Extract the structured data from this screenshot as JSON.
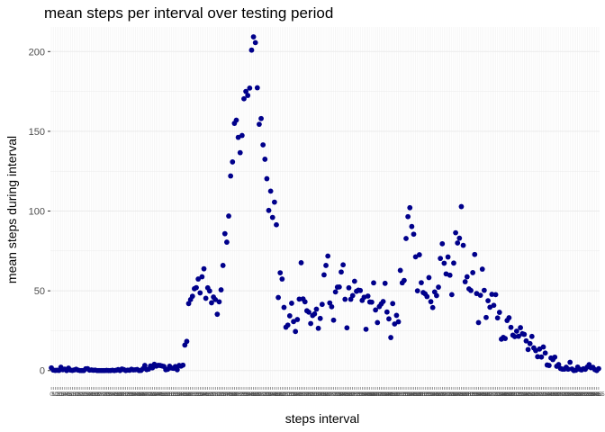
{
  "chart_data": {
    "type": "scatter",
    "title": "mean steps per interval over testing period",
    "xlabel": "steps interval",
    "ylabel": "mean steps during interval",
    "ylim": [
      0,
      215
    ],
    "y_ticks": [
      0,
      50,
      100,
      150,
      200
    ],
    "grid": true,
    "panel_background": "#ffffff",
    "grid_color": "#ebebeb",
    "point_color": "#00008b",
    "point_count": 288,
    "x": [
      0,
      5,
      10,
      15,
      20,
      25,
      30,
      35,
      40,
      45,
      50,
      55,
      100,
      105,
      110,
      115,
      120,
      125,
      130,
      135,
      140,
      145,
      150,
      155,
      200,
      205,
      210,
      215,
      220,
      225,
      230,
      235,
      240,
      245,
      250,
      255,
      300,
      305,
      310,
      315,
      320,
      325,
      330,
      335,
      340,
      345,
      350,
      355,
      400,
      405,
      410,
      415,
      420,
      425,
      430,
      435,
      440,
      445,
      450,
      455,
      500,
      505,
      510,
      515,
      520,
      525,
      530,
      535,
      540,
      545,
      550,
      555,
      600,
      605,
      610,
      615,
      620,
      625,
      630,
      635,
      640,
      645,
      650,
      655,
      700,
      705,
      710,
      715,
      720,
      725,
      730,
      735,
      740,
      745,
      750,
      755,
      800,
      805,
      810,
      815,
      820,
      825,
      830,
      835,
      840,
      845,
      850,
      855,
      900,
      905,
      910,
      915,
      920,
      925,
      930,
      935,
      940,
      945,
      950,
      955,
      1000,
      1005,
      1010,
      1015,
      1020,
      1025,
      1030,
      1035,
      1040,
      1045,
      1050,
      1055,
      1100,
      1105,
      1110,
      1115,
      1120,
      1125,
      1130,
      1135,
      1140,
      1145,
      1150,
      1155,
      1200,
      1205,
      1210,
      1215,
      1220,
      1225,
      1230,
      1235,
      1240,
      1245,
      1250,
      1255,
      1300,
      1305,
      1310,
      1315,
      1320,
      1325,
      1330,
      1335,
      1340,
      1345,
      1350,
      1355,
      1400,
      1405,
      1410,
      1415,
      1420,
      1425,
      1430,
      1435,
      1440,
      1445,
      1450,
      1455,
      1500,
      1505,
      1510,
      1515,
      1520,
      1525,
      1530,
      1535,
      1540,
      1545,
      1550,
      1555,
      1600,
      1605,
      1610,
      1615,
      1620,
      1625,
      1630,
      1635,
      1640,
      1645,
      1650,
      1655,
      1700,
      1705,
      1710,
      1715,
      1720,
      1725,
      1730,
      1735,
      1740,
      1745,
      1750,
      1755,
      1800,
      1805,
      1810,
      1815,
      1820,
      1825,
      1830,
      1835,
      1840,
      1845,
      1850,
      1855,
      1900,
      1905,
      1910,
      1915,
      1920,
      1925,
      1930,
      1935,
      1940,
      1945,
      1950,
      1955,
      2000,
      2005,
      2010,
      2015,
      2020,
      2025,
      2030,
      2035,
      2040,
      2045,
      2050,
      2055,
      2100,
      2105,
      2110,
      2115,
      2120,
      2125,
      2130,
      2135,
      2140,
      2145,
      2150,
      2155,
      2200,
      2205,
      2210,
      2215,
      2220,
      2225,
      2230,
      2235,
      2240,
      2245,
      2250,
      2255,
      2300,
      2305,
      2310,
      2315,
      2320,
      2325,
      2330,
      2335,
      2340,
      2345,
      2350,
      2355
    ],
    "y": [
      1.7,
      0.3,
      0.1,
      0.2,
      0.1,
      2.1,
      0.5,
      0.9,
      0.0,
      1.5,
      0.3,
      0.1,
      0.4,
      0.8,
      0.3,
      0.0,
      0.0,
      0.0,
      1.1,
      1.2,
      0.3,
      0.4,
      0.2,
      0.3,
      0.0,
      0.0,
      0.0,
      0.0,
      0.0,
      0.1,
      0.0,
      0.0,
      0.2,
      0.0,
      0.2,
      0.6,
      0.0,
      1.0,
      0.6,
      0.0,
      0.3,
      0.2,
      0.8,
      0.4,
      0.5,
      0.7,
      0.0,
      0.1,
      1.1,
      3.2,
      0.6,
      0.9,
      2.9,
      1.7,
      3.9,
      2.8,
      3.3,
      3.2,
      2.9,
      2.6,
      0.5,
      0.8,
      2.7,
      1.6,
      1.4,
      2.5,
      0.5,
      3.2,
      2.8,
      3.4,
      16.0,
      18.3,
      42.0,
      44.5,
      46.6,
      51.3,
      52.0,
      57.4,
      48.7,
      58.8,
      63.8,
      45.3,
      51.9,
      49.9,
      42.5,
      46.1,
      44.5,
      35.3,
      43.1,
      50.6,
      65.9,
      85.8,
      80.5,
      96.9,
      122.0,
      130.8,
      155.0,
      157.0,
      146.2,
      136.6,
      147.4,
      170.4,
      175.0,
      172.5,
      177.1,
      200.9,
      209.2,
      205.6,
      177.3,
      154.4,
      158.0,
      141.5,
      132.5,
      120.3,
      100.4,
      112.5,
      96.0,
      105.6,
      91.4,
      45.8,
      61.3,
      57.4,
      39.6,
      27.2,
      28.5,
      34.3,
      42.2,
      30.7,
      24.5,
      32.0,
      44.8,
      67.6,
      44.9,
      43.1,
      37.5,
      36.6,
      29.5,
      34.5,
      35.5,
      38.5,
      26.5,
      32.7,
      41.5,
      60.0,
      65.9,
      71.8,
      42.4,
      40.0,
      31.6,
      49.3,
      52.3,
      52.4,
      61.8,
      66.3,
      44.7,
      26.8,
      51.9,
      44.7,
      47.0,
      56.0,
      49.7,
      50.4,
      50.2,
      44.0,
      46.0,
      25.9,
      46.7,
      43.0,
      42.9,
      55.0,
      38.0,
      30.1,
      40.1,
      41.8,
      43.3,
      54.7,
      36.7,
      32.4,
      20.7,
      42.0,
      29.2,
      34.6,
      30.6,
      62.8,
      55.0,
      56.5,
      82.8,
      96.5,
      102.1,
      90.3,
      85.5,
      71.3,
      50.0,
      72.6,
      55.1,
      48.9,
      48.1,
      46.4,
      58.3,
      43.2,
      39.5,
      49.3,
      47.0,
      52.3,
      70.3,
      79.5,
      67.3,
      60.6,
      71.2,
      59.8,
      47.6,
      67.4,
      86.4,
      80.0,
      83.0,
      102.8,
      78.5,
      55.7,
      58.8,
      51.2,
      50.2,
      61.4,
      72.8,
      48.3,
      30.1,
      47.2,
      63.6,
      50.3,
      33.3,
      43.8,
      39.7,
      47.8,
      40.9,
      47.6,
      33.0,
      36.5,
      19.7,
      20.8,
      20.1,
      31.4,
      33.1,
      27.1,
      22.2,
      21.3,
      24.7,
      21.5,
      26.9,
      23.1,
      22.7,
      18.6,
      13.2,
      16.9,
      21.4,
      14.2,
      12.5,
      8.7,
      13.5,
      8.5,
      14.8,
      11.0,
      3.5,
      3.2,
      7.9,
      6.9,
      8.4,
      2.7,
      3.8,
      1.3,
      0.9,
      0.9,
      2.1,
      0.9,
      5.2,
      1.0,
      0.0,
      0.2,
      2.2,
      0.8,
      0.4,
      1.1,
      0.8,
      2.2,
      3.7,
      1.8,
      2.0,
      0.6,
      0.0,
      1.2
    ]
  }
}
